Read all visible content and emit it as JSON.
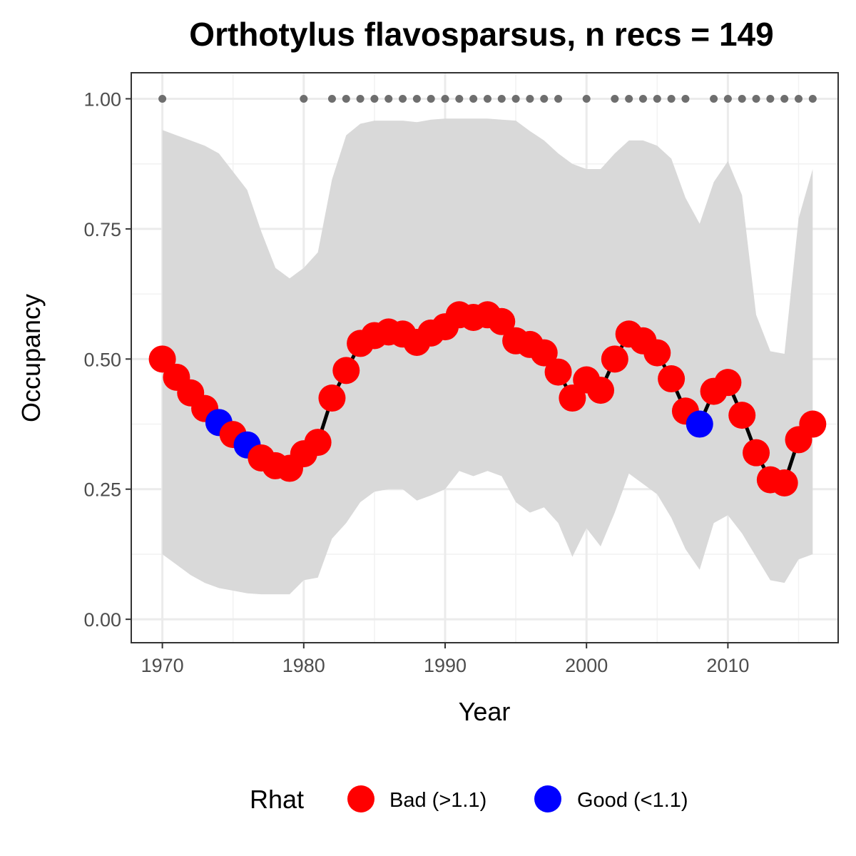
{
  "chart_data": {
    "type": "line",
    "title": "Orthotylus flavosparsus, n recs = 149",
    "xlabel": "Year",
    "ylabel": "Occupancy",
    "xlim": [
      1967.8,
      2017.8
    ],
    "ylim": [
      -0.045,
      1.05
    ],
    "x_ticks": [
      "1970",
      "1980",
      "1990",
      "2000",
      "2010"
    ],
    "y_ticks": [
      "0.00",
      "0.25",
      "0.50",
      "0.75",
      "1.00"
    ],
    "grid": true,
    "legend_position": "bottom",
    "colors": {
      "bad": "#ff0000",
      "good": "#0000ff",
      "line": "#000000",
      "ribbon": "#d9d9d9",
      "record_dots": "#6e6e6e"
    },
    "legend": {
      "title": "Rhat",
      "items": [
        {
          "key": "bad",
          "label": "Bad (>1.1)"
        },
        {
          "key": "good",
          "label": "Good (<1.1)"
        }
      ]
    },
    "series": [
      {
        "x": [
          1970,
          1971,
          1972,
          1973,
          1974,
          1975,
          1976,
          1977,
          1978,
          1979,
          1980,
          1981,
          1982,
          1983,
          1984,
          1985,
          1986,
          1987,
          1988,
          1989,
          1990,
          1991,
          1992,
          1993,
          1994,
          1995,
          1996,
          1997,
          1998,
          1999,
          2000,
          2001,
          2002,
          2003,
          2004,
          2005,
          2006,
          2007,
          2008,
          2009,
          2010,
          2011,
          2012,
          2013,
          2014,
          2015,
          2016
        ],
        "mean": [
          0.5,
          0.465,
          0.435,
          0.405,
          0.378,
          0.355,
          0.335,
          0.31,
          0.295,
          0.29,
          0.318,
          0.34,
          0.425,
          0.478,
          0.53,
          0.545,
          0.552,
          0.548,
          0.532,
          0.55,
          0.562,
          0.585,
          0.58,
          0.585,
          0.572,
          0.535,
          0.528,
          0.512,
          0.475,
          0.425,
          0.46,
          0.44,
          0.5,
          0.548,
          0.535,
          0.512,
          0.462,
          0.4,
          0.375,
          0.438,
          0.455,
          0.392,
          0.32,
          0.268,
          0.262,
          0.345,
          0.375
        ],
        "lower": [
          0.125,
          0.105,
          0.085,
          0.07,
          0.06,
          0.055,
          0.05,
          0.048,
          0.048,
          0.048,
          0.075,
          0.08,
          0.155,
          0.185,
          0.225,
          0.245,
          0.25,
          0.25,
          0.228,
          0.238,
          0.25,
          0.285,
          0.275,
          0.285,
          0.275,
          0.225,
          0.205,
          0.215,
          0.185,
          0.12,
          0.175,
          0.14,
          0.205,
          0.28,
          0.26,
          0.24,
          0.195,
          0.135,
          0.095,
          0.185,
          0.2,
          0.165,
          0.12,
          0.075,
          0.07,
          0.115,
          0.125
        ],
        "upper": [
          0.94,
          0.93,
          0.92,
          0.91,
          0.895,
          0.86,
          0.825,
          0.745,
          0.675,
          0.655,
          0.675,
          0.705,
          0.845,
          0.93,
          0.952,
          0.958,
          0.958,
          0.958,
          0.955,
          0.96,
          0.962,
          0.962,
          0.962,
          0.962,
          0.96,
          0.958,
          0.938,
          0.92,
          0.895,
          0.875,
          0.865,
          0.865,
          0.895,
          0.92,
          0.92,
          0.91,
          0.885,
          0.81,
          0.76,
          0.84,
          0.88,
          0.815,
          0.585,
          0.515,
          0.51,
          0.77,
          0.865
        ],
        "rhat": [
          "bad",
          "bad",
          "bad",
          "bad",
          "good",
          "bad",
          "good",
          "bad",
          "bad",
          "bad",
          "bad",
          "bad",
          "bad",
          "bad",
          "bad",
          "bad",
          "bad",
          "bad",
          "bad",
          "bad",
          "bad",
          "bad",
          "bad",
          "bad",
          "bad",
          "bad",
          "bad",
          "bad",
          "bad",
          "bad",
          "bad",
          "bad",
          "bad",
          "bad",
          "bad",
          "bad",
          "bad",
          "bad",
          "good",
          "bad",
          "bad",
          "bad",
          "bad",
          "bad",
          "bad",
          "bad",
          "bad"
        ]
      }
    ],
    "record_years": [
      1970,
      1980,
      1982,
      1983,
      1984,
      1985,
      1986,
      1987,
      1988,
      1989,
      1990,
      1991,
      1992,
      1993,
      1994,
      1995,
      1996,
      1997,
      1998,
      2000,
      2002,
      2003,
      2004,
      2005,
      2006,
      2007,
      2009,
      2010,
      2011,
      2012,
      2013,
      2014,
      2015,
      2016
    ],
    "record_value": 1.0
  }
}
